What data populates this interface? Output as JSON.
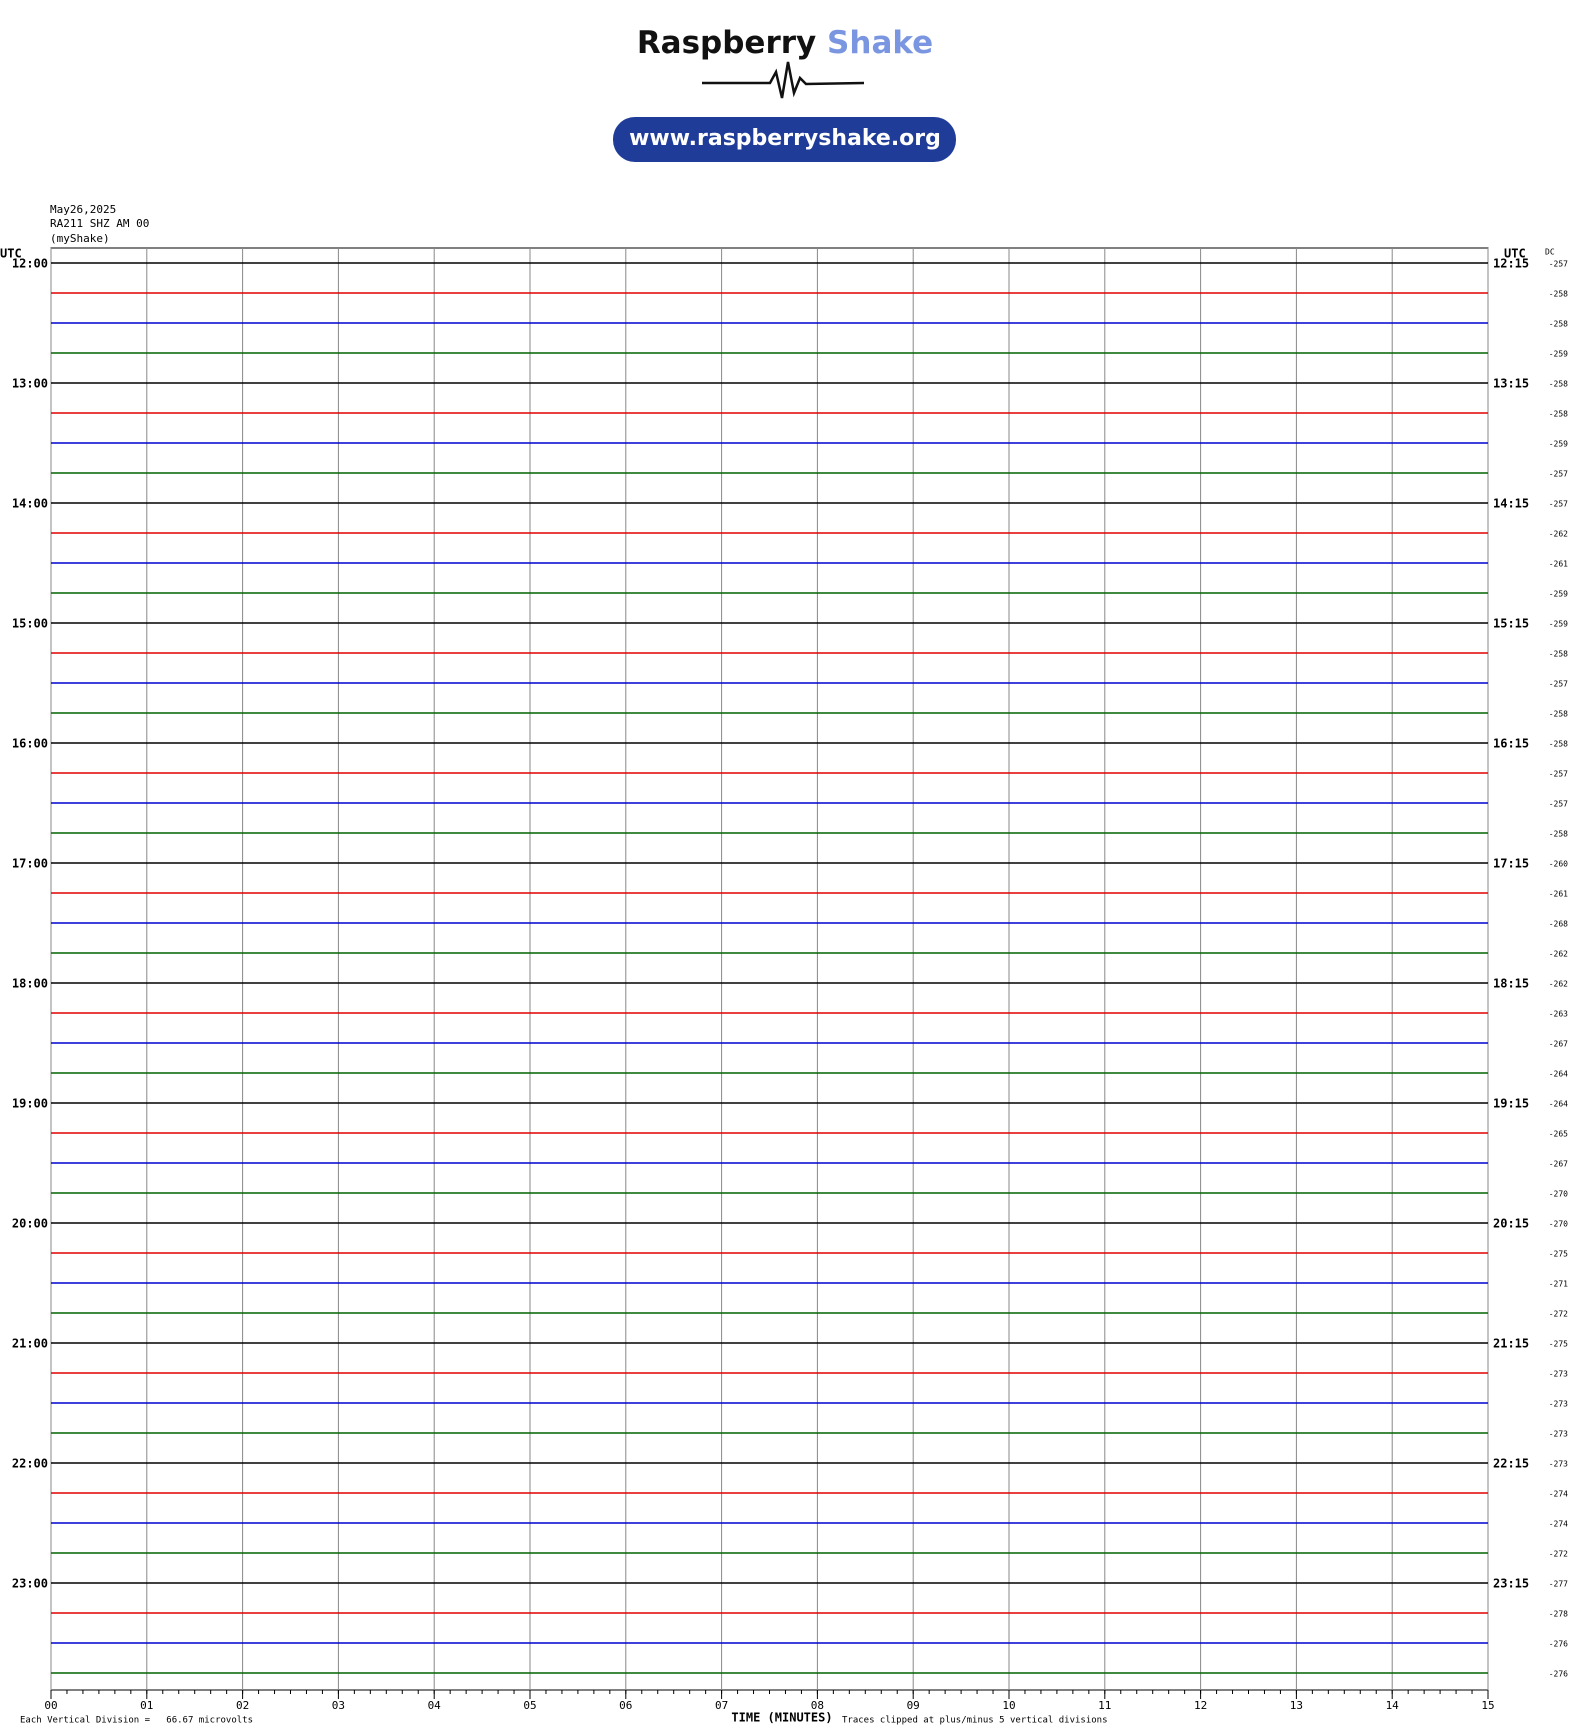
{
  "header": {
    "brand": "Raspberry",
    "brand_accent": "Shake",
    "url": "www.raspberryshake.org"
  },
  "chart_data": {
    "type": "helicorder",
    "date": "May26,2025",
    "station": "RA211 SHZ AM 00",
    "source": "(myShake)",
    "left_axis_label": "UTC",
    "right_axis_label": "UTC",
    "dc_label": "DC",
    "xlabel": "TIME (MINUTES)",
    "scale_note": "Each Vertical Division =   66.67 microvolts",
    "clip_note": "Traces clipped at plus/minus 5 vertical divisions",
    "xlim": [
      0,
      15
    ],
    "xticks": [
      {
        "value": 0,
        "label": "00"
      },
      {
        "value": 1,
        "label": "01"
      },
      {
        "value": 2,
        "label": "02"
      },
      {
        "value": 3,
        "label": "03"
      },
      {
        "value": 4,
        "label": "04"
      },
      {
        "value": 5,
        "label": "05"
      },
      {
        "value": 6,
        "label": "06"
      },
      {
        "value": 7,
        "label": "07"
      },
      {
        "value": 8,
        "label": "08"
      },
      {
        "value": 9,
        "label": "09"
      },
      {
        "value": 10,
        "label": "10"
      },
      {
        "value": 11,
        "label": "11"
      },
      {
        "value": 12,
        "label": "12"
      },
      {
        "value": 13,
        "label": "13"
      },
      {
        "value": 14,
        "label": "14"
      },
      {
        "value": 15,
        "label": "15"
      }
    ],
    "hour_labels": [
      {
        "left": "12:00",
        "right": "12:15"
      },
      {
        "left": "13:00",
        "right": "13:15"
      },
      {
        "left": "14:00",
        "right": "14:15"
      },
      {
        "left": "15:00",
        "right": "15:15"
      },
      {
        "left": "16:00",
        "right": "16:15"
      },
      {
        "left": "17:00",
        "right": "17:15"
      },
      {
        "left": "18:00",
        "right": "18:15"
      },
      {
        "left": "19:00",
        "right": "19:15"
      },
      {
        "left": "20:00",
        "right": "20:15"
      },
      {
        "left": "21:00",
        "right": "21:15"
      },
      {
        "left": "22:00",
        "right": "22:15"
      },
      {
        "left": "23:00",
        "right": "23:15"
      }
    ],
    "dc_values": [
      -257,
      -258,
      -258,
      -259,
      -258,
      -258,
      -259,
      -257,
      -257,
      -262,
      -261,
      -259,
      -259,
      -258,
      -257,
      -258,
      -258,
      -257,
      -257,
      -258,
      -260,
      -261,
      -268,
      -262,
      -262,
      -263,
      -267,
      -264,
      -264,
      -265,
      -267,
      -270,
      -270,
      -275,
      -271,
      -272,
      -275,
      -273,
      -273,
      -273,
      -273,
      -274,
      -274,
      -272,
      -277,
      -278,
      -276,
      -276
    ],
    "trace_colors": [
      "#000000",
      "#e00000",
      "#0000d0",
      "#006400"
    ]
  }
}
